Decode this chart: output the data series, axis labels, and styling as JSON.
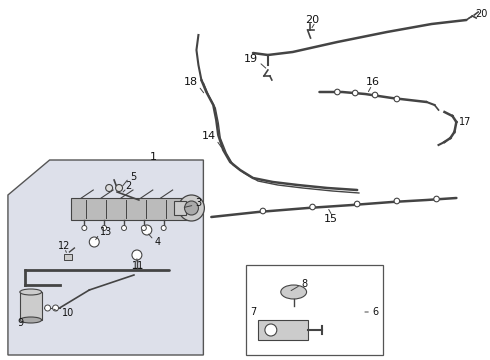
{
  "bg_color": "#ffffff",
  "fig_width": 4.9,
  "fig_height": 3.6,
  "dpi": 100,
  "line_color": "#444444",
  "label_color": "#111111",
  "box1_bg": "#dde0ea",
  "box2_bg": "#ffffff"
}
